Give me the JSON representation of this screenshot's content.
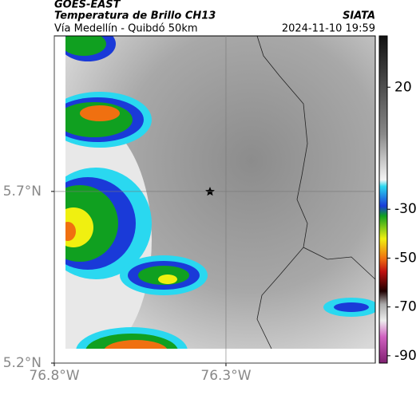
{
  "header": {
    "source": "GOES-EAST",
    "title": "Temperatura de Brillo CH13",
    "agency": "SIATA",
    "subtitle": "Vía Medellín - Quibdó 50km",
    "timestamp": "2024-11-10 19:59"
  },
  "map": {
    "xlim": [
      -76.8,
      -75.865
    ],
    "ylim": [
      5.2,
      6.153
    ],
    "xticks": [
      {
        "value": -76.8,
        "label": "76.8°W"
      },
      {
        "value": -76.3,
        "label": "76.3°W"
      }
    ],
    "yticks": [
      {
        "value": 5.7,
        "label": "5.7°N"
      },
      {
        "value": 5.2,
        "label": "5.2°N"
      }
    ],
    "grid": true
  },
  "colorbar": {
    "lim": [
      -93,
      41
    ],
    "ticks": [
      20,
      -30,
      -50,
      -70,
      -90
    ]
  }
}
